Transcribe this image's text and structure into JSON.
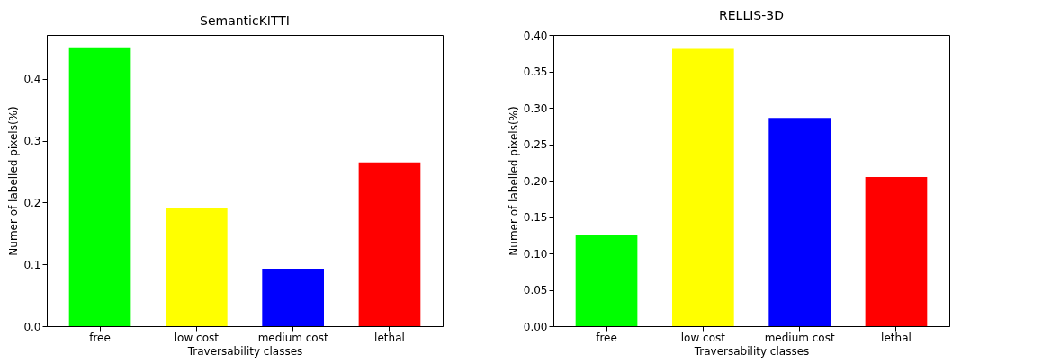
{
  "chart_data": [
    {
      "type": "bar",
      "title": "SemanticKITTI",
      "xlabel": "Traversability classes",
      "ylabel": "Numer of labelled pixels(%)",
      "categories": [
        "free",
        "low cost",
        "medium cost",
        "lethal"
      ],
      "values": [
        0.451,
        0.192,
        0.093,
        0.265
      ],
      "colors": [
        "#00ff00",
        "#ffff00",
        "#0000ff",
        "#ff0000"
      ],
      "ylim": [
        0,
        0.471
      ],
      "yticks": [
        {
          "value": 0,
          "label": "0.0"
        },
        {
          "value": 0.1,
          "label": "0.1"
        },
        {
          "value": 0.2,
          "label": "0.2"
        },
        {
          "value": 0.3,
          "label": "0.3"
        },
        {
          "value": 0.4,
          "label": "0.4"
        }
      ]
    },
    {
      "type": "bar",
      "title": "RELLIS-3D",
      "xlabel": "Traversability classes",
      "ylabel": "Numer of labelled pixels(%)",
      "categories": [
        "free",
        "low cost",
        "medium cost",
        "lethal"
      ],
      "values": [
        0.125,
        0.382,
        0.286,
        0.205
      ],
      "colors": [
        "#00ff00",
        "#ffff00",
        "#0000ff",
        "#ff0000"
      ],
      "ylim": [
        0,
        0.4
      ],
      "yticks": [
        {
          "value": 0,
          "label": "0.00"
        },
        0.05,
        {
          "value": 0.1,
          "label": "0.10"
        },
        0.15,
        {
          "value": 0.2,
          "label": "0.20"
        },
        0.25,
        {
          "value": 0.3,
          "label": "0.30"
        },
        0.35,
        {
          "value": 0.4,
          "label": "0.40"
        }
      ]
    }
  ]
}
